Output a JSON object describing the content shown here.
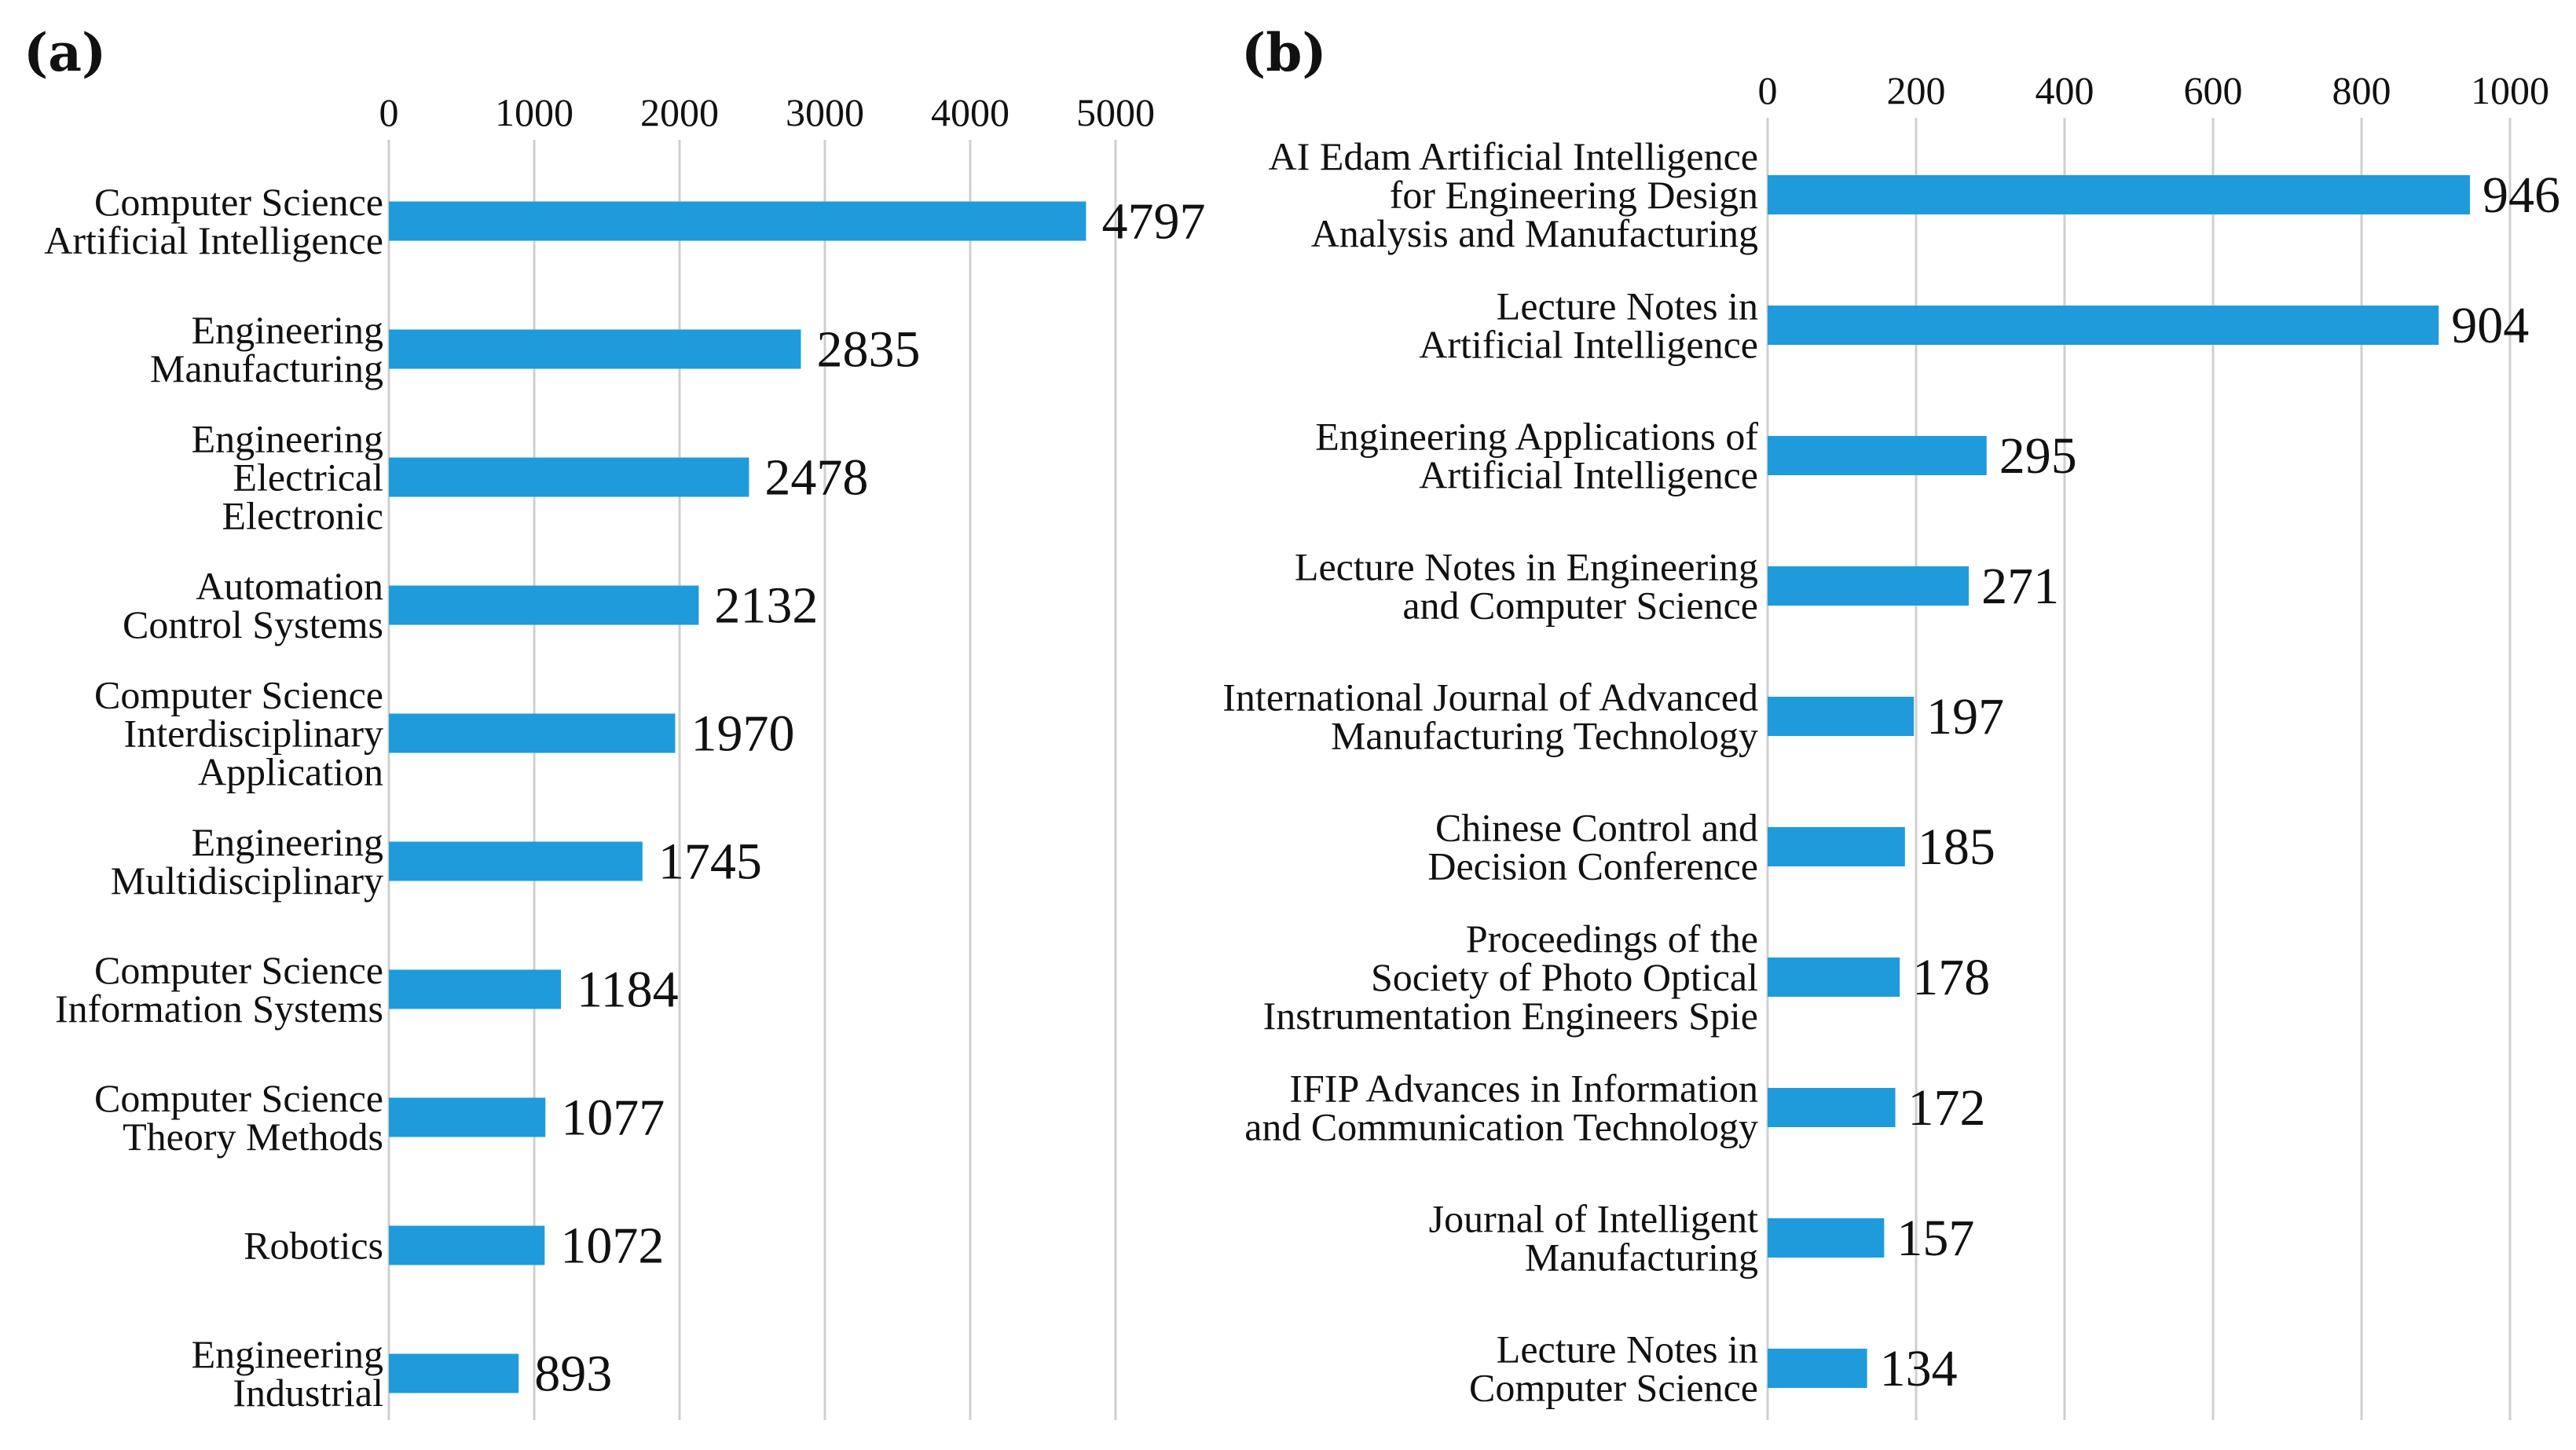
{
  "panels": [
    {
      "label": "(a)",
      "chart_data": {
        "type": "bar",
        "orientation": "horizontal",
        "title": "",
        "xlabel": "",
        "ylabel": "",
        "xlim": [
          0,
          5000
        ],
        "ticks": [
          "0",
          "1000",
          "2000",
          "3000",
          "4000",
          "5000"
        ],
        "grid": true,
        "categories": [
          [
            "Computer Science",
            "Artificial Intelligence"
          ],
          [
            "Engineering",
            "Manufacturing"
          ],
          [
            "Engineering",
            "Electrical",
            "Electronic"
          ],
          [
            "Automation",
            "Control Systems"
          ],
          [
            "Computer Science",
            "Interdisciplinary",
            "Application"
          ],
          [
            "Engineering",
            "Multidisciplinary"
          ],
          [
            "Computer Science",
            "Information Systems"
          ],
          [
            "Computer Science",
            "Theory Methods"
          ],
          [
            "Robotics"
          ],
          [
            "Engineering",
            "Industrial"
          ]
        ],
        "values": [
          4797,
          2835,
          2478,
          2132,
          1970,
          1745,
          1184,
          1077,
          1072,
          893
        ],
        "bar_color": "#1f9bdb"
      }
    },
    {
      "label": "(b)",
      "chart_data": {
        "type": "bar",
        "orientation": "horizontal",
        "title": "",
        "xlabel": "",
        "ylabel": "",
        "xlim": [
          0,
          1000
        ],
        "ticks": [
          "0",
          "200",
          "400",
          "600",
          "800",
          "1000"
        ],
        "grid": true,
        "categories": [
          [
            "AI Edam Artificial Intelligence",
            "for Engineering Design",
            "Analysis and Manufacturing"
          ],
          [
            "Lecture Notes in",
            "Artificial Intelligence"
          ],
          [
            "Engineering Applications of",
            "Artificial Intelligence"
          ],
          [
            "Lecture Notes in Engineering",
            "and Computer Science"
          ],
          [
            "International Journal of Advanced",
            "Manufacturing Technology"
          ],
          [
            "Chinese Control and",
            "Decision Conference"
          ],
          [
            "Proceedings of the",
            "Society of Photo Optical",
            "Instrumentation Engineers Spie"
          ],
          [
            "IFIP Advances in Information",
            "and Communication Technology"
          ],
          [
            "Journal of Intelligent",
            "Manufacturing"
          ],
          [
            "Lecture Notes in",
            "Computer Science"
          ]
        ],
        "values": [
          946,
          904,
          295,
          271,
          197,
          185,
          178,
          172,
          157,
          134
        ],
        "bar_color": "#1f9bdb"
      }
    }
  ]
}
